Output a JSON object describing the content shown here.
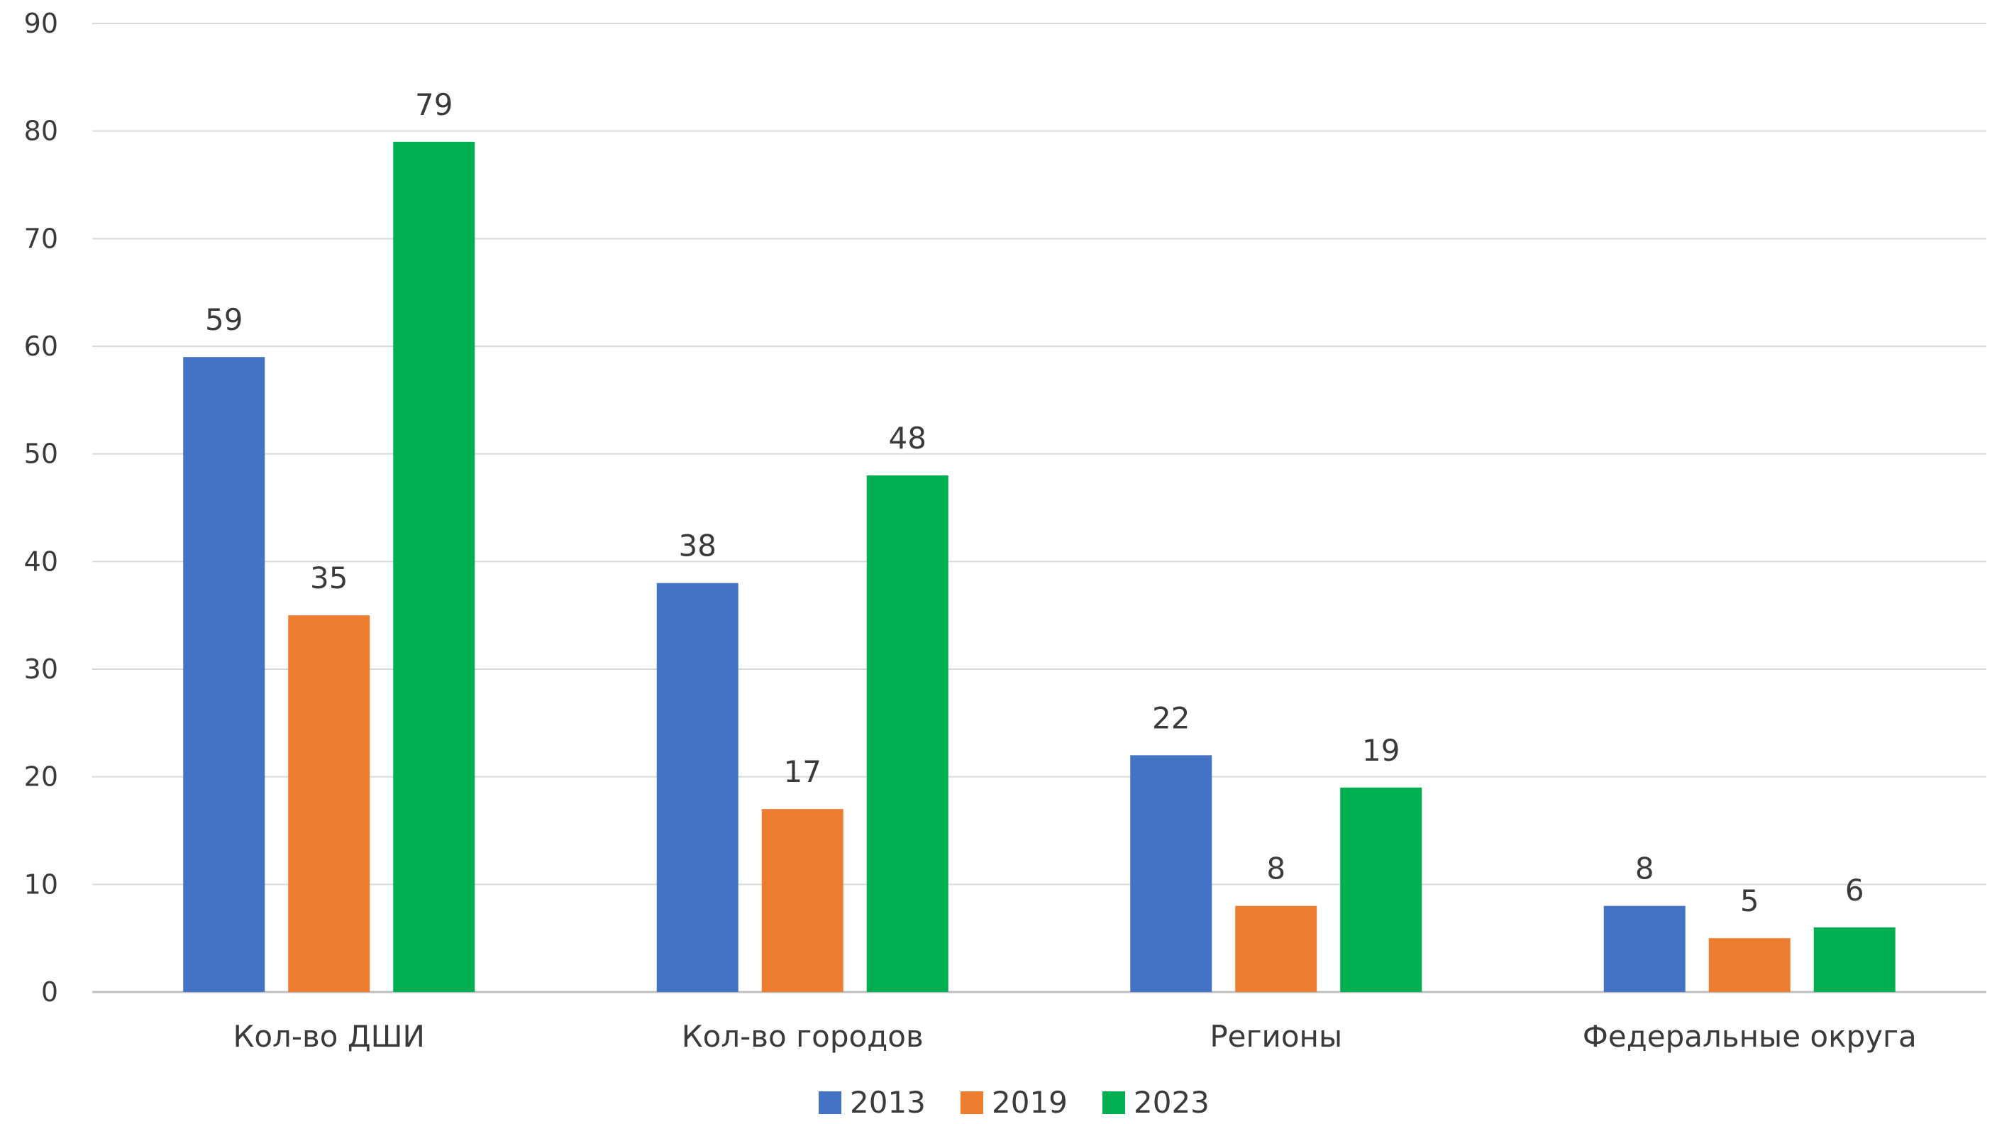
{
  "chart_data": {
    "type": "bar",
    "title": "",
    "xlabel": "",
    "ylabel": "",
    "categories": [
      "Кол-во ДШИ",
      "Кол-во городов",
      "Регионы",
      "Федеральные округа"
    ],
    "series": [
      {
        "name": "2013",
        "values": [
          59,
          38,
          22,
          8
        ],
        "color": "#4472C4"
      },
      {
        "name": "2019",
        "values": [
          35,
          17,
          8,
          5
        ],
        "color": "#ED7D31"
      },
      {
        "name": "2023",
        "values": [
          79,
          48,
          19,
          6
        ],
        "color": "#00B050"
      }
    ],
    "ylim": [
      0,
      90
    ],
    "yticks": [
      0,
      10,
      20,
      30,
      40,
      50,
      60,
      70,
      80,
      90
    ],
    "grid": true,
    "data_labels": true,
    "legend_position": "bottom-center",
    "grid_color": "#d9d9d9",
    "axis_color": "#bfbfbf"
  }
}
